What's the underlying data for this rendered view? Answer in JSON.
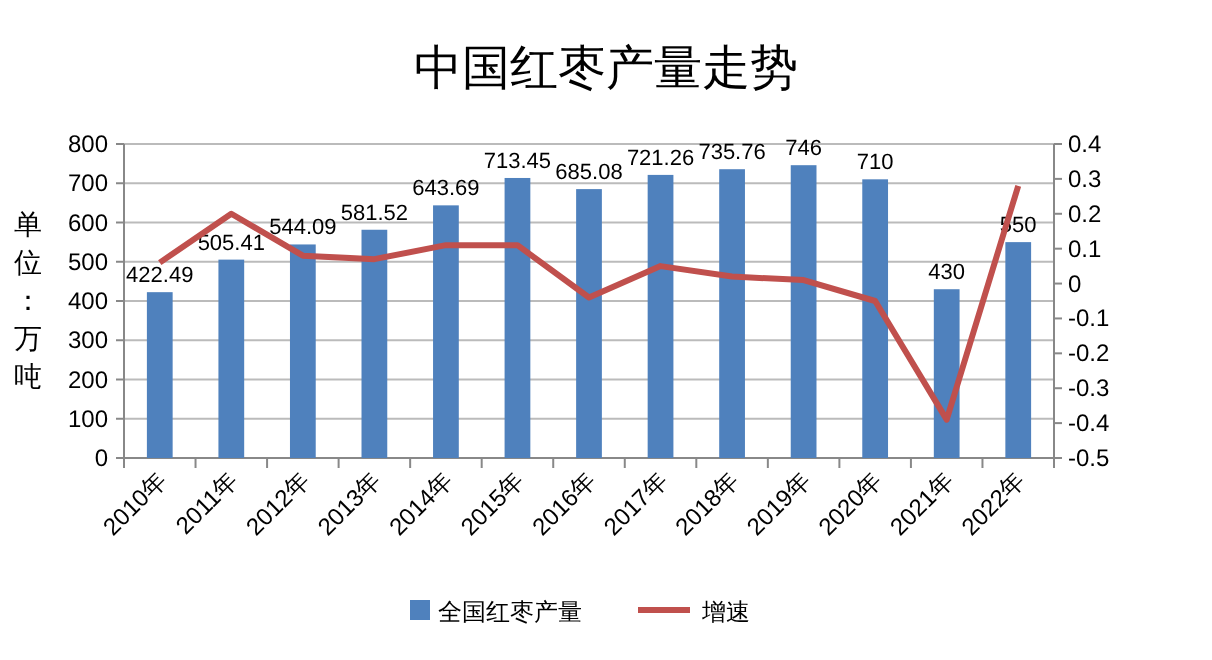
{
  "chart_data": {
    "type": "bar",
    "title": "中国红枣产量走势",
    "ylabel": "单位：万吨",
    "categories": [
      "2010年",
      "2011年",
      "2012年",
      "2013年",
      "2014年",
      "2015年",
      "2016年",
      "2017年",
      "2018年",
      "2019年",
      "2020年",
      "2021年",
      "2022年"
    ],
    "series": [
      {
        "name": "全国红枣产量",
        "color": "#4f81bd",
        "values": [
          422.49,
          505.41,
          544.09,
          581.52,
          643.69,
          713.45,
          685.08,
          721.26,
          735.76,
          746,
          710,
          430,
          550
        ],
        "value_labels": [
          "422.49",
          "505.41",
          "544.09",
          "581.52",
          "643.69",
          "713.45",
          "685.08",
          "721.26",
          "735.76",
          "746",
          "710",
          "430",
          "550"
        ]
      },
      {
        "name": "增速",
        "type": "line",
        "axis": "y2",
        "color": "#c0504d",
        "values": [
          0.06,
          0.2,
          0.08,
          0.07,
          0.11,
          0.11,
          -0.04,
          0.05,
          0.02,
          0.01,
          -0.05,
          -0.39,
          0.28
        ]
      }
    ],
    "ylim": [
      0,
      800
    ],
    "yticks": [
      0,
      100,
      200,
      300,
      400,
      500,
      600,
      700,
      800
    ],
    "y2lim": [
      -0.5,
      0.4
    ],
    "y2ticks": [
      -0.5,
      -0.4,
      -0.3,
      -0.2,
      -0.1,
      0,
      0.1,
      0.2,
      0.3,
      0.4
    ],
    "grid": "y",
    "legend": "bottom"
  }
}
